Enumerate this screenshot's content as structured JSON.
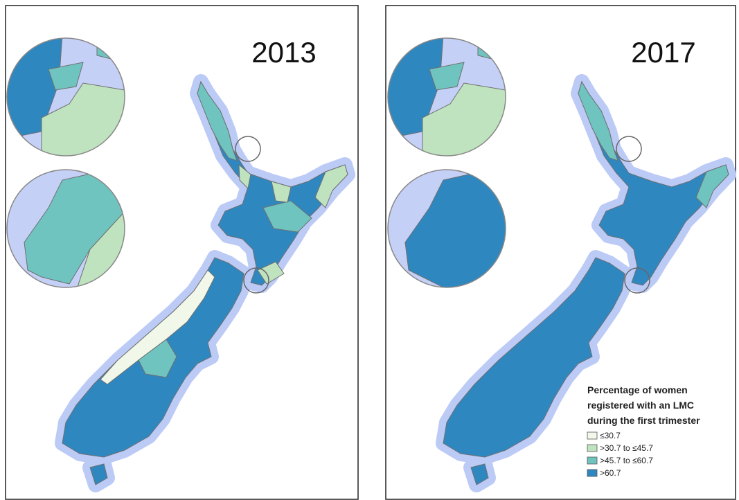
{
  "panels": [
    {
      "year": "2013"
    },
    {
      "year": "2017"
    }
  ],
  "legend": {
    "title": [
      "Percentage of women",
      "registered with an LMC",
      "during the first trimester"
    ],
    "items": [
      {
        "label": "≤30.7",
        "color": "#f1f8ea"
      },
      {
        "label": ">30.7 to ≤45.7",
        "color": "#bfe3be"
      },
      {
        "label": ">45.7 to ≤60.7",
        "color": "#6fc4c0"
      },
      {
        "label": ">60.7",
        "color": "#2f87bf"
      }
    ]
  }
}
